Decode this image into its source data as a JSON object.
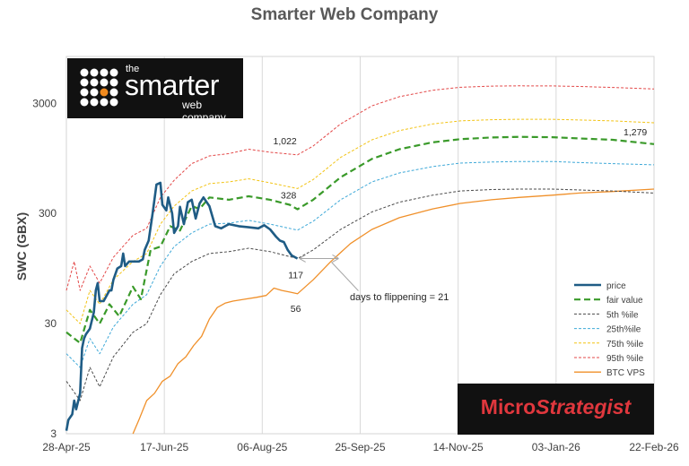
{
  "chart_data": {
    "type": "line",
    "title": "Smarter Web Company",
    "ylabel": "SWC (GBX)",
    "yscale": "log",
    "ylim": [
      3,
      8000
    ],
    "xlim": [
      "2025-04-28",
      "2026-02-22"
    ],
    "x_ticks": [
      "28-Apr-25",
      "17-Jun-25",
      "06-Aug-25",
      "25-Sep-25",
      "14-Nov-25",
      "03-Jan-26",
      "22-Feb-26"
    ],
    "y_ticks": [
      "3",
      "30",
      "300",
      "3000"
    ],
    "grid": {
      "x": true,
      "y": false
    },
    "legend_position": "bottom-right",
    "series": [
      {
        "name": "price",
        "color": "#1f5c85",
        "style": "solid-thick",
        "points": [
          [
            "2025-04-28",
            3.2
          ],
          [
            "2025-04-29",
            4
          ],
          [
            "2025-05-01",
            4.5
          ],
          [
            "2025-05-02",
            6
          ],
          [
            "2025-05-03",
            5
          ],
          [
            "2025-05-05",
            7
          ],
          [
            "2025-05-06",
            18
          ],
          [
            "2025-05-07",
            22
          ],
          [
            "2025-05-08",
            24
          ],
          [
            "2025-05-10",
            27
          ],
          [
            "2025-05-12",
            38
          ],
          [
            "2025-05-13",
            60
          ],
          [
            "2025-05-14",
            70
          ],
          [
            "2025-05-15",
            48
          ],
          [
            "2025-05-17",
            48
          ],
          [
            "2025-05-20",
            60
          ],
          [
            "2025-05-21",
            60
          ],
          [
            "2025-05-22",
            75
          ],
          [
            "2025-05-24",
            95
          ],
          [
            "2025-05-26",
            100
          ],
          [
            "2025-05-27",
            130
          ],
          [
            "2025-05-28",
            100
          ],
          [
            "2025-05-30",
            110
          ],
          [
            "2025-06-01",
            110
          ],
          [
            "2025-06-04",
            110
          ],
          [
            "2025-06-06",
            115
          ],
          [
            "2025-06-07",
            140
          ],
          [
            "2025-06-09",
            170
          ],
          [
            "2025-06-11",
            300
          ],
          [
            "2025-06-13",
            550
          ],
          [
            "2025-06-15",
            570
          ],
          [
            "2025-06-16",
            360
          ],
          [
            "2025-06-18",
            320
          ],
          [
            "2025-06-19",
            420
          ],
          [
            "2025-06-21",
            300
          ],
          [
            "2025-06-22",
            200
          ],
          [
            "2025-06-24",
            230
          ],
          [
            "2025-06-25",
            345
          ],
          [
            "2025-06-27",
            240
          ],
          [
            "2025-06-29",
            380
          ],
          [
            "2025-07-01",
            400
          ],
          [
            "2025-07-03",
            270
          ],
          [
            "2025-07-05",
            370
          ],
          [
            "2025-07-07",
            420
          ],
          [
            "2025-07-10",
            350
          ],
          [
            "2025-07-13",
            230
          ],
          [
            "2025-07-16",
            220
          ],
          [
            "2025-07-20",
            240
          ],
          [
            "2025-07-25",
            230
          ],
          [
            "2025-07-30",
            225
          ],
          [
            "2025-08-04",
            220
          ],
          [
            "2025-08-07",
            235
          ],
          [
            "2025-08-10",
            215
          ],
          [
            "2025-08-13",
            185
          ],
          [
            "2025-08-15",
            170
          ],
          [
            "2025-08-17",
            165
          ],
          [
            "2025-08-19",
            140
          ],
          [
            "2025-08-21",
            125
          ],
          [
            "2025-08-24",
            117
          ]
        ]
      },
      {
        "name": "fair value",
        "color": "#3a9a2a",
        "style": "dashed-thick",
        "points": [
          [
            "2025-04-28",
            25
          ],
          [
            "2025-05-05",
            20
          ],
          [
            "2025-05-10",
            40
          ],
          [
            "2025-05-15",
            30
          ],
          [
            "2025-05-20",
            45
          ],
          [
            "2025-05-25",
            35
          ],
          [
            "2025-06-01",
            65
          ],
          [
            "2025-06-05",
            50
          ],
          [
            "2025-06-10",
            140
          ],
          [
            "2025-06-15",
            150
          ],
          [
            "2025-06-20",
            230
          ],
          [
            "2025-06-25",
            210
          ],
          [
            "2025-07-01",
            350
          ],
          [
            "2025-07-05",
            330
          ],
          [
            "2025-07-10",
            420
          ],
          [
            "2025-07-20",
            400
          ],
          [
            "2025-07-30",
            430
          ],
          [
            "2025-08-10",
            400
          ],
          [
            "2025-08-20",
            360
          ],
          [
            "2025-08-24",
            328
          ],
          [
            "2025-09-01",
            400
          ],
          [
            "2025-09-15",
            640
          ],
          [
            "2025-10-01",
            940
          ],
          [
            "2025-10-15",
            1150
          ],
          [
            "2025-11-01",
            1330
          ],
          [
            "2025-11-15",
            1420
          ],
          [
            "2025-12-01",
            1470
          ],
          [
            "2025-12-15",
            1490
          ],
          [
            "2026-01-01",
            1480
          ],
          [
            "2026-01-15",
            1440
          ],
          [
            "2026-02-01",
            1400
          ],
          [
            "2026-02-22",
            1279
          ]
        ]
      },
      {
        "name": "5th %ile",
        "color": "#4a4a4a",
        "style": "dashed-thin",
        "points": [
          [
            "2025-04-28",
            9
          ],
          [
            "2025-05-05",
            6
          ],
          [
            "2025-05-10",
            12
          ],
          [
            "2025-05-15",
            8
          ],
          [
            "2025-05-22",
            15
          ],
          [
            "2025-06-01",
            25
          ],
          [
            "2025-06-08",
            30
          ],
          [
            "2025-06-15",
            55
          ],
          [
            "2025-06-22",
            85
          ],
          [
            "2025-07-01",
            110
          ],
          [
            "2025-07-10",
            130
          ],
          [
            "2025-07-20",
            135
          ],
          [
            "2025-07-30",
            145
          ],
          [
            "2025-08-10",
            135
          ],
          [
            "2025-08-24",
            117
          ],
          [
            "2025-09-01",
            140
          ],
          [
            "2025-09-15",
            215
          ],
          [
            "2025-10-01",
            310
          ],
          [
            "2025-10-15",
            380
          ],
          [
            "2025-11-01",
            440
          ],
          [
            "2025-11-15",
            480
          ],
          [
            "2025-12-01",
            495
          ],
          [
            "2025-12-15",
            500
          ],
          [
            "2026-01-01",
            500
          ],
          [
            "2026-01-15",
            490
          ],
          [
            "2026-02-01",
            480
          ],
          [
            "2026-02-22",
            460
          ]
        ]
      },
      {
        "name": "25th%ile",
        "color": "#3fa9d8",
        "style": "dashed-thin",
        "points": [
          [
            "2025-04-28",
            16
          ],
          [
            "2025-05-05",
            12
          ],
          [
            "2025-05-10",
            22
          ],
          [
            "2025-05-15",
            16
          ],
          [
            "2025-05-22",
            28
          ],
          [
            "2025-06-01",
            45
          ],
          [
            "2025-06-08",
            55
          ],
          [
            "2025-06-15",
            100
          ],
          [
            "2025-06-22",
            150
          ],
          [
            "2025-07-01",
            200
          ],
          [
            "2025-07-10",
            240
          ],
          [
            "2025-07-20",
            245
          ],
          [
            "2025-07-30",
            260
          ],
          [
            "2025-08-10",
            240
          ],
          [
            "2025-08-24",
            212
          ],
          [
            "2025-09-01",
            255
          ],
          [
            "2025-09-15",
            400
          ],
          [
            "2025-10-01",
            580
          ],
          [
            "2025-10-15",
            700
          ],
          [
            "2025-11-01",
            800
          ],
          [
            "2025-11-15",
            860
          ],
          [
            "2025-12-01",
            880
          ],
          [
            "2025-12-15",
            890
          ],
          [
            "2026-01-01",
            890
          ],
          [
            "2026-01-15",
            870
          ],
          [
            "2026-02-01",
            850
          ],
          [
            "2026-02-22",
            830
          ]
        ]
      },
      {
        "name": "75th %ile",
        "color": "#f2c314",
        "style": "dashed-thin",
        "points": [
          [
            "2025-04-28",
            40
          ],
          [
            "2025-05-05",
            30
          ],
          [
            "2025-05-10",
            60
          ],
          [
            "2025-05-15",
            45
          ],
          [
            "2025-05-22",
            75
          ],
          [
            "2025-06-01",
            110
          ],
          [
            "2025-06-08",
            130
          ],
          [
            "2025-06-15",
            240
          ],
          [
            "2025-06-22",
            350
          ],
          [
            "2025-07-01",
            480
          ],
          [
            "2025-07-10",
            560
          ],
          [
            "2025-07-20",
            580
          ],
          [
            "2025-07-30",
            620
          ],
          [
            "2025-08-10",
            570
          ],
          [
            "2025-08-24",
            505
          ],
          [
            "2025-09-01",
            610
          ],
          [
            "2025-09-15",
            970
          ],
          [
            "2025-10-01",
            1400
          ],
          [
            "2025-10-15",
            1700
          ],
          [
            "2025-11-01",
            1950
          ],
          [
            "2025-11-15",
            2080
          ],
          [
            "2025-12-01",
            2130
          ],
          [
            "2025-12-15",
            2150
          ],
          [
            "2026-01-01",
            2150
          ],
          [
            "2026-01-15",
            2120
          ],
          [
            "2026-02-01",
            2080
          ],
          [
            "2026-02-22",
            2000
          ]
        ]
      },
      {
        "name": "95th %ile",
        "color": "#e34848",
        "style": "dashed-thin",
        "points": [
          [
            "2025-04-28",
            60
          ],
          [
            "2025-05-02",
            110
          ],
          [
            "2025-05-05",
            60
          ],
          [
            "2025-05-10",
            100
          ],
          [
            "2025-05-15",
            70
          ],
          [
            "2025-05-22",
            120
          ],
          [
            "2025-06-01",
            190
          ],
          [
            "2025-06-08",
            220
          ],
          [
            "2025-06-15",
            420
          ],
          [
            "2025-06-22",
            600
          ],
          [
            "2025-07-01",
            850
          ],
          [
            "2025-07-10",
            1000
          ],
          [
            "2025-07-20",
            1050
          ],
          [
            "2025-07-30",
            1150
          ],
          [
            "2025-08-10",
            1080
          ],
          [
            "2025-08-24",
            1022
          ],
          [
            "2025-09-01",
            1230
          ],
          [
            "2025-09-15",
            1950
          ],
          [
            "2025-10-01",
            2850
          ],
          [
            "2025-10-15",
            3450
          ],
          [
            "2025-11-01",
            3950
          ],
          [
            "2025-11-15",
            4200
          ],
          [
            "2025-12-01",
            4300
          ],
          [
            "2025-12-15",
            4330
          ],
          [
            "2026-01-01",
            4320
          ],
          [
            "2026-01-15",
            4270
          ],
          [
            "2026-02-01",
            4180
          ],
          [
            "2026-02-22",
            4050
          ]
        ]
      },
      {
        "name": "BTC VPS",
        "color": "#f0902a",
        "style": "solid",
        "points": [
          [
            "2025-06-01",
            3
          ],
          [
            "2025-06-04",
            4
          ],
          [
            "2025-06-08",
            6
          ],
          [
            "2025-06-12",
            7
          ],
          [
            "2025-06-16",
            9
          ],
          [
            "2025-06-20",
            10
          ],
          [
            "2025-06-24",
            13
          ],
          [
            "2025-06-28",
            15
          ],
          [
            "2025-07-02",
            19
          ],
          [
            "2025-07-06",
            23
          ],
          [
            "2025-07-10",
            33
          ],
          [
            "2025-07-14",
            42
          ],
          [
            "2025-07-18",
            46
          ],
          [
            "2025-07-22",
            48
          ],
          [
            "2025-07-28",
            50
          ],
          [
            "2025-08-03",
            52
          ],
          [
            "2025-08-08",
            54
          ],
          [
            "2025-08-12",
            63
          ],
          [
            "2025-08-16",
            60
          ],
          [
            "2025-08-20",
            58
          ],
          [
            "2025-08-24",
            56
          ],
          [
            "2025-09-01",
            75
          ],
          [
            "2025-09-10",
            110
          ],
          [
            "2025-09-20",
            160
          ],
          [
            "2025-10-01",
            215
          ],
          [
            "2025-10-15",
            275
          ],
          [
            "2025-11-01",
            330
          ],
          [
            "2025-11-15",
            370
          ],
          [
            "2025-12-01",
            400
          ],
          [
            "2025-12-15",
            420
          ],
          [
            "2026-01-01",
            440
          ],
          [
            "2026-01-15",
            460
          ],
          [
            "2026-02-01",
            475
          ],
          [
            "2026-02-22",
            500
          ]
        ]
      }
    ],
    "annotations": [
      {
        "text": "1,022",
        "x": "2025-08-24",
        "y": 1022
      },
      {
        "text": "328",
        "x": "2025-08-24",
        "y": 328
      },
      {
        "text": "117",
        "x": "2025-08-24",
        "y": 117
      },
      {
        "text": "56",
        "x": "2025-08-24",
        "y": 56
      },
      {
        "text": "1,279",
        "x": "2026-02-22",
        "y": 1279
      },
      {
        "text": "days to flippening = 21",
        "x": "2025-08-24",
        "y": 117,
        "x_to": "2025-09-14"
      }
    ]
  },
  "logos": {
    "left": {
      "line1": "the",
      "line2": "smarter",
      "line3": "web company"
    },
    "right": {
      "part1": "Micro",
      "part2": "Strategist"
    }
  }
}
